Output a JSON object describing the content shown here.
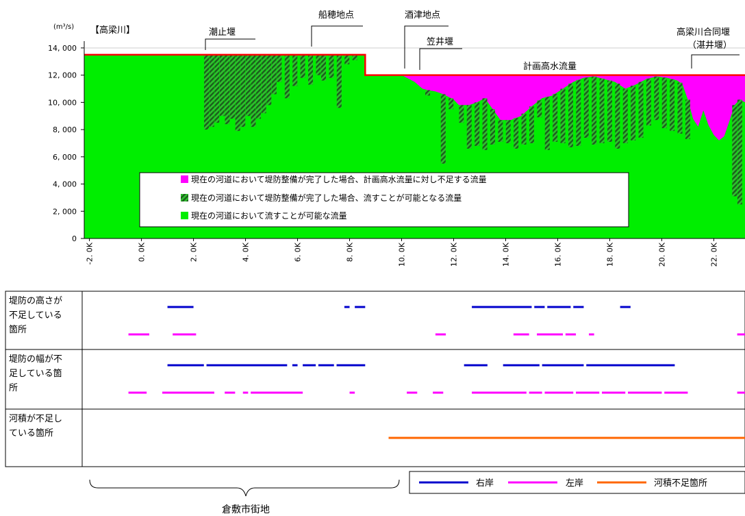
{
  "colors": {
    "capacity": "#00EE00",
    "hatch": "#1f7a1f",
    "shortage": "#FF00FF",
    "plan_line": "#FF0000",
    "right_bank": "#0000CC",
    "left_bank": "#FF00FF",
    "channel_shortage": "#FF6600",
    "axis": "#000000"
  },
  "chart_data": {
    "type": "area",
    "panel_label": "【高梁川】",
    "y_unit": "(m³/s)",
    "ylim": [
      0,
      14500
    ],
    "y_ticks": [
      {
        "v": 0,
        "label": "0"
      },
      {
        "v": 2000,
        "label": "2, 000"
      },
      {
        "v": 4000,
        "label": "4, 000"
      },
      {
        "v": 6000,
        "label": "6, 000"
      },
      {
        "v": 8000,
        "label": "8, 000"
      },
      {
        "v": 10000,
        "label": "10, 000"
      },
      {
        "v": 12000,
        "label": "12, 000"
      },
      {
        "v": 14000,
        "label": "14, 000"
      }
    ],
    "xlim": [
      -2.2,
      23.2
    ],
    "x_ticks": [
      {
        "v": -2,
        "label": "-2. 0K"
      },
      {
        "v": 0,
        "label": "0. 0K"
      },
      {
        "v": 2,
        "label": "2. 0K"
      },
      {
        "v": 4,
        "label": "4. 0K"
      },
      {
        "v": 6,
        "label": "6. 0K"
      },
      {
        "v": 8,
        "label": "8. 0K"
      },
      {
        "v": 10,
        "label": "10. 0K"
      },
      {
        "v": 12,
        "label": "12. 0K"
      },
      {
        "v": 14,
        "label": "14. 0K"
      },
      {
        "v": 16,
        "label": "16. 0K"
      },
      {
        "v": 18,
        "label": "18. 0K"
      },
      {
        "v": 20,
        "label": "20. 0K"
      },
      {
        "v": 22,
        "label": "22. 0K"
      }
    ],
    "plan_flow": {
      "label": "計画高水流量",
      "segments": [
        {
          "x0": -2.2,
          "x1": 8.6,
          "y": 13500
        },
        {
          "x0": 8.6,
          "x1": 23.2,
          "y": 12000
        }
      ]
    },
    "capacity_profile": [
      [
        -2.2,
        13500
      ],
      [
        8.6,
        13500
      ],
      [
        8.6,
        12000
      ],
      [
        10.0,
        12000
      ],
      [
        10.2,
        11800
      ],
      [
        10.5,
        11500
      ],
      [
        10.8,
        11000
      ],
      [
        11.0,
        10900
      ],
      [
        11.3,
        10800
      ],
      [
        11.6,
        10600
      ],
      [
        12.0,
        10200
      ],
      [
        12.2,
        9800
      ],
      [
        12.6,
        9800
      ],
      [
        12.9,
        10000
      ],
      [
        13.2,
        10300
      ],
      [
        13.5,
        9500
      ],
      [
        13.8,
        8700
      ],
      [
        14.2,
        8700
      ],
      [
        14.6,
        9000
      ],
      [
        15.0,
        9700
      ],
      [
        15.4,
        10300
      ],
      [
        15.8,
        10500
      ],
      [
        16.2,
        11000
      ],
      [
        16.6,
        11500
      ],
      [
        17.0,
        11800
      ],
      [
        17.4,
        11900
      ],
      [
        17.8,
        11700
      ],
      [
        18.2,
        11500
      ],
      [
        18.6,
        11000
      ],
      [
        19.0,
        11300
      ],
      [
        19.4,
        11700
      ],
      [
        19.8,
        11900
      ],
      [
        20.2,
        11800
      ],
      [
        20.6,
        11600
      ],
      [
        20.8,
        11300
      ],
      [
        21.0,
        10200
      ],
      [
        21.2,
        8800
      ],
      [
        21.4,
        8200
      ],
      [
        21.6,
        9400
      ],
      [
        21.8,
        8300
      ],
      [
        22.0,
        7600
      ],
      [
        22.2,
        7200
      ],
      [
        22.4,
        7500
      ],
      [
        22.6,
        8600
      ],
      [
        22.8,
        9800
      ],
      [
        23.0,
        10200
      ],
      [
        23.2,
        10000
      ]
    ],
    "possible_dips": [
      [
        2.5,
        8000
      ],
      [
        2.7,
        8200
      ],
      [
        2.9,
        8500
      ],
      [
        3.1,
        9000
      ],
      [
        3.3,
        8400
      ],
      [
        3.5,
        8800
      ],
      [
        3.7,
        7900
      ],
      [
        3.9,
        8200
      ],
      [
        4.1,
        9000
      ],
      [
        4.3,
        8200
      ],
      [
        4.5,
        8800
      ],
      [
        4.7,
        9200
      ],
      [
        4.9,
        9800
      ],
      [
        5.1,
        10600
      ],
      [
        5.3,
        11500
      ],
      [
        5.6,
        10300
      ],
      [
        5.9,
        11200
      ],
      [
        6.2,
        11800
      ],
      [
        6.5,
        11300
      ],
      [
        6.8,
        12000
      ],
      [
        7.0,
        11600
      ],
      [
        7.3,
        11800
      ],
      [
        7.6,
        9600
      ],
      [
        7.9,
        12800
      ],
      [
        8.2,
        13100
      ],
      [
        11.0,
        10500
      ],
      [
        11.6,
        5500
      ],
      [
        11.9,
        9500
      ],
      [
        12.3,
        8500
      ],
      [
        12.6,
        6600
      ],
      [
        12.9,
        6800
      ],
      [
        13.2,
        6500
      ],
      [
        13.5,
        6900
      ],
      [
        13.8,
        7100
      ],
      [
        14.1,
        7000
      ],
      [
        14.4,
        6600
      ],
      [
        14.7,
        6900
      ],
      [
        15.0,
        7000
      ],
      [
        15.3,
        8900
      ],
      [
        15.6,
        6500
      ],
      [
        15.9,
        7100
      ],
      [
        16.2,
        7000
      ],
      [
        16.5,
        6700
      ],
      [
        16.8,
        6800
      ],
      [
        17.1,
        7400
      ],
      [
        17.4,
        6900
      ],
      [
        17.7,
        7000
      ],
      [
        18.0,
        7100
      ],
      [
        18.3,
        6600
      ],
      [
        18.6,
        7000
      ],
      [
        18.9,
        7200
      ],
      [
        19.2,
        7400
      ],
      [
        19.5,
        8300
      ],
      [
        19.8,
        8700
      ],
      [
        20.1,
        8100
      ],
      [
        20.4,
        7900
      ],
      [
        20.7,
        7700
      ],
      [
        21.0,
        7300
      ],
      [
        22.8,
        3100
      ],
      [
        23.0,
        2500
      ]
    ],
    "landmarks": [
      {
        "name": "潮止堰",
        "x": 2.5,
        "tick_top": "13960",
        "label_y": 51
      },
      {
        "name": "船穂地点",
        "x": 6.5,
        "label_y": 26
      },
      {
        "name": "酒津地点",
        "x": 10.0,
        "label_y": 26
      },
      {
        "name": "笠井堰",
        "x": 10.6,
        "label_y": 65
      },
      {
        "name": "高梁川合同堰",
        "x": 21.0,
        "label_y": 51
      },
      {
        "name": "（湛井堰）",
        "x": 21.0,
        "label_y": 70
      }
    ],
    "legend": {
      "placement": "lower-center",
      "items": [
        {
          "key": "shortage",
          "label": "現在の河道において堤防整備が完了した場合、計画高水流量に対し不足する流量"
        },
        {
          "key": "hatch",
          "label": "現在の河道において堤防整備が完了した場合、流すことが可能となる流量"
        },
        {
          "key": "capacity",
          "label": "現在の河道において流すことが可能な流量"
        }
      ]
    }
  },
  "deficiency_table": {
    "rows": [
      {
        "label_lines": [
          "堤防の高さが",
          "不足している",
          "箇所"
        ],
        "bars": {
          "right": [
            [
              1.0,
              2.0
            ],
            [
              7.8,
              8.0
            ],
            [
              8.2,
              8.6
            ],
            [
              12.7,
              15.0
            ],
            [
              15.1,
              15.5
            ],
            [
              15.6,
              16.5
            ],
            [
              16.6,
              17.0
            ],
            [
              18.4,
              18.8
            ]
          ],
          "left": [
            [
              -0.5,
              0.3
            ],
            [
              1.2,
              2.1
            ],
            [
              11.3,
              11.7
            ],
            [
              14.3,
              14.9
            ],
            [
              15.2,
              16.2
            ],
            [
              16.3,
              16.7
            ],
            [
              17.2,
              17.4
            ],
            [
              22.9,
              23.2
            ]
          ]
        }
      },
      {
        "label_lines": [
          "堤防の幅が不",
          "足している箇",
          "所"
        ],
        "bars": {
          "right": [
            [
              1.0,
              2.4
            ],
            [
              2.5,
              5.6
            ],
            [
              5.8,
              6.0
            ],
            [
              6.2,
              6.7
            ],
            [
              6.8,
              7.4
            ],
            [
              7.5,
              8.6
            ],
            [
              12.4,
              13.3
            ],
            [
              13.9,
              15.3
            ],
            [
              15.4,
              17.0
            ],
            [
              17.1,
              20.5
            ]
          ],
          "left": [
            [
              -0.5,
              0.2
            ],
            [
              0.8,
              2.8
            ],
            [
              3.2,
              3.6
            ],
            [
              3.9,
              4.1
            ],
            [
              4.2,
              6.2
            ],
            [
              8.0,
              8.2
            ],
            [
              10.2,
              10.6
            ],
            [
              11.2,
              11.6
            ],
            [
              12.7,
              14.8
            ],
            [
              14.9,
              15.4
            ],
            [
              15.5,
              16.6
            ],
            [
              16.7,
              17.6
            ],
            [
              17.7,
              18.6
            ],
            [
              18.7,
              20.0
            ],
            [
              20.1,
              21.0
            ],
            [
              22.9,
              23.2
            ]
          ]
        }
      },
      {
        "label_lines": [
          "河積が不足し",
          "ている箇所"
        ],
        "bars": {
          "channel": [
            [
              9.5,
              23.2
            ]
          ]
        }
      }
    ]
  },
  "bottom_legend": {
    "items": [
      {
        "key": "right_bank",
        "label": "右岸"
      },
      {
        "key": "left_bank",
        "label": "左岸"
      },
      {
        "key": "channel_shortage",
        "label": "河積不足箇所"
      }
    ]
  },
  "district_label": "倉敷市街地"
}
